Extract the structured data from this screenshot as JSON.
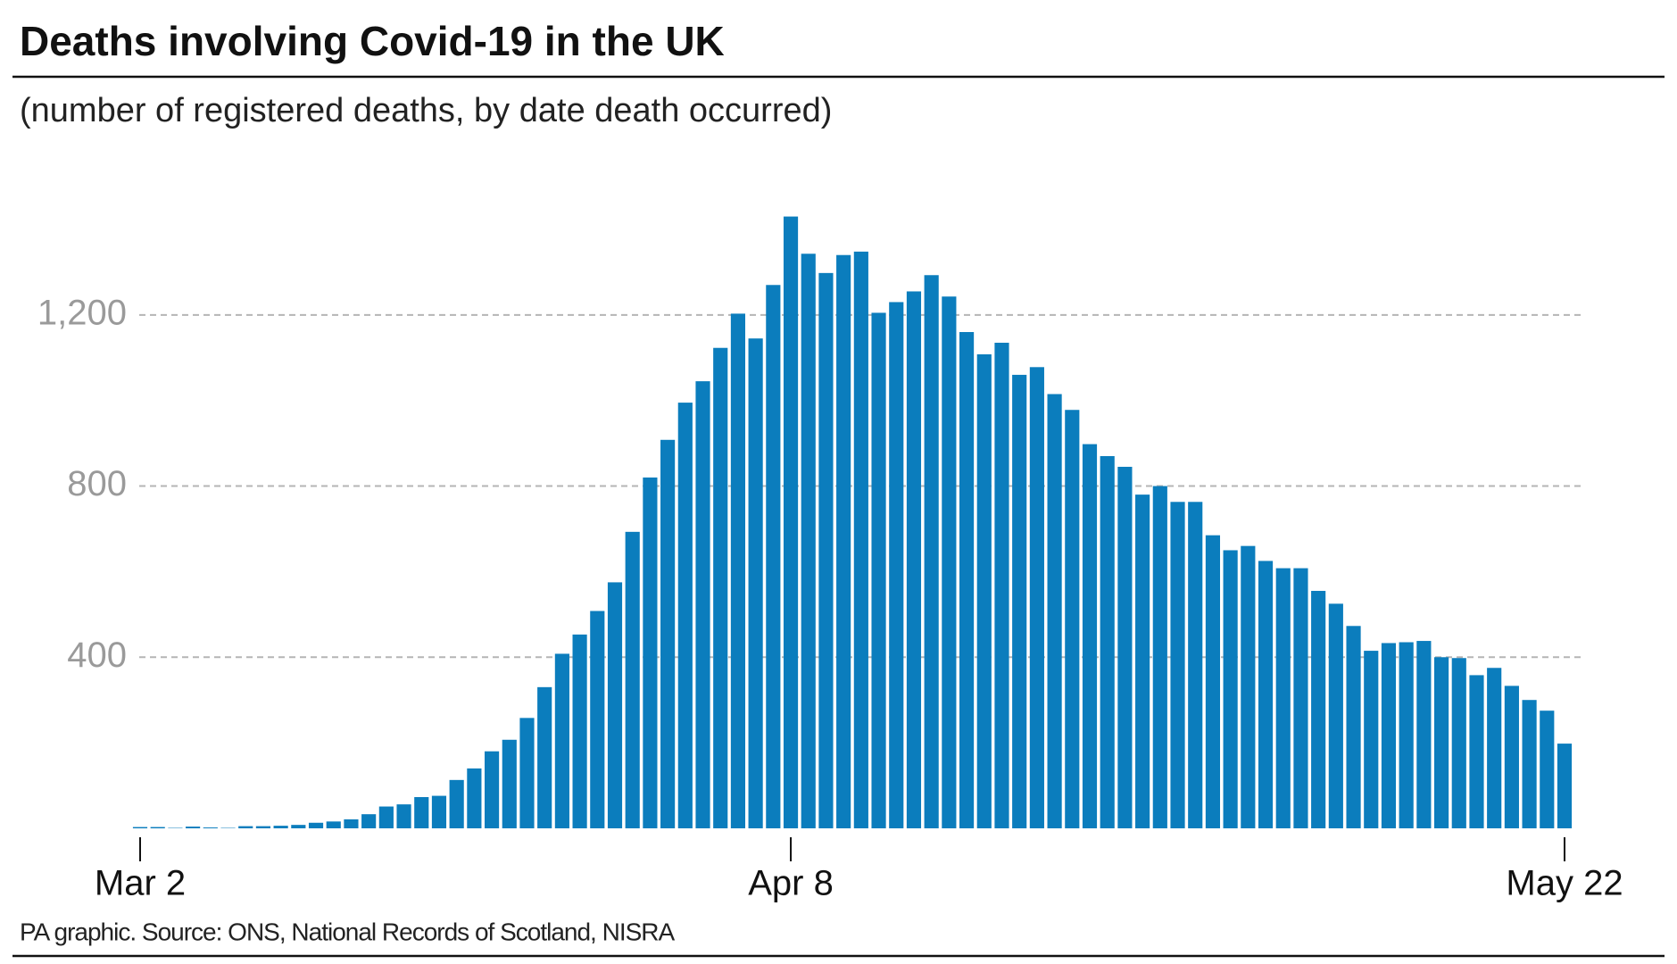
{
  "chart_data": {
    "type": "bar",
    "title": "Deaths involving Covid-19 in the UK",
    "subtitle": "(number of registered deaths, by date death occurred)",
    "source": "PA graphic. Source: ONS, National Records of Scotland, NISRA",
    "categories": [
      "Mar 2",
      null,
      null,
      null,
      null,
      null,
      null,
      null,
      null,
      null,
      null,
      null,
      null,
      null,
      null,
      null,
      null,
      null,
      null,
      null,
      null,
      null,
      null,
      null,
      null,
      null,
      null,
      null,
      null,
      null,
      null,
      null,
      null,
      null,
      null,
      null,
      null,
      "Apr 8",
      null,
      null,
      null,
      null,
      null,
      null,
      null,
      null,
      null,
      null,
      null,
      null,
      null,
      null,
      null,
      null,
      null,
      null,
      null,
      null,
      null,
      null,
      null,
      null,
      null,
      null,
      null,
      null,
      null,
      null,
      null,
      null,
      null,
      null,
      null,
      null,
      null,
      null,
      null,
      null,
      null,
      null,
      null,
      "May 22"
    ],
    "values": [
      3,
      3,
      1,
      4,
      2,
      1,
      5,
      5,
      6,
      8,
      13,
      16,
      21,
      33,
      51,
      56,
      73,
      76,
      113,
      140,
      180,
      207,
      258,
      330,
      408,
      453,
      508,
      575,
      693,
      820,
      908,
      995,
      1045,
      1123,
      1203,
      1145,
      1270,
      1430,
      1343,
      1298,
      1340,
      1348,
      1205,
      1230,
      1255,
      1293,
      1243,
      1160,
      1108,
      1135,
      1060,
      1078,
      1015,
      978,
      898,
      870,
      845,
      780,
      800,
      763,
      763,
      685,
      650,
      660,
      625,
      608,
      608,
      555,
      525,
      473,
      415,
      433,
      435,
      438,
      400,
      398,
      358,
      375,
      333,
      300,
      275,
      198
    ],
    "color": "#0b7dbd",
    "ylim": [
      0,
      1450
    ],
    "yticks": [
      400,
      800,
      {
        "value": 1200,
        "label": "1,200"
      }
    ],
    "grid": true
  }
}
